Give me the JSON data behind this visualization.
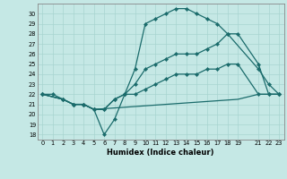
{
  "xlabel": "Humidex (Indice chaleur)",
  "bg_color": "#c5e8e5",
  "line_color": "#1a6b6b",
  "grid_color": "#a8d4d0",
  "ylim": [
    17.5,
    31.0
  ],
  "xlim": [
    -0.5,
    23.5
  ],
  "yticks": [
    18,
    19,
    20,
    21,
    22,
    23,
    24,
    25,
    26,
    27,
    28,
    29,
    30
  ],
  "xticks": [
    0,
    1,
    2,
    3,
    4,
    5,
    6,
    7,
    8,
    9,
    10,
    11,
    12,
    13,
    14,
    15,
    16,
    17,
    18,
    19,
    21,
    22,
    23
  ],
  "line1_x": [
    0,
    1,
    2,
    3,
    4,
    5,
    6,
    7,
    8,
    9,
    10,
    11,
    12,
    13,
    14,
    15,
    16,
    17,
    18,
    21,
    22,
    23
  ],
  "line1_y": [
    22,
    22,
    21.5,
    21,
    21,
    20.5,
    18,
    19.5,
    22,
    24.5,
    29,
    29.5,
    30,
    30.5,
    30.5,
    30,
    29.5,
    29,
    28,
    24.5,
    23,
    22
  ],
  "line2_x": [
    0,
    2,
    3,
    4,
    5,
    6,
    7,
    8,
    9,
    10,
    11,
    12,
    13,
    14,
    15,
    16,
    17,
    18,
    19,
    21,
    22,
    23
  ],
  "line2_y": [
    22,
    21.5,
    21,
    21,
    20.5,
    20.5,
    21.5,
    22,
    23,
    24.5,
    25,
    25.5,
    26,
    26,
    26,
    26.5,
    27,
    28,
    28,
    25,
    22,
    22
  ],
  "line3_x": [
    0,
    2,
    3,
    4,
    5,
    6,
    7,
    8,
    9,
    10,
    11,
    12,
    13,
    14,
    15,
    16,
    17,
    18,
    19,
    21,
    22,
    23
  ],
  "line3_y": [
    22,
    21.5,
    21,
    21,
    20.5,
    20.5,
    21.5,
    22,
    22,
    22.5,
    23,
    23.5,
    24,
    24,
    24,
    24.5,
    24.5,
    25,
    25,
    22,
    22,
    22
  ],
  "line4_x": [
    0,
    2,
    3,
    4,
    5,
    19,
    21,
    22,
    23
  ],
  "line4_y": [
    22,
    21.5,
    21,
    21,
    20.5,
    21.5,
    22,
    22,
    22
  ]
}
